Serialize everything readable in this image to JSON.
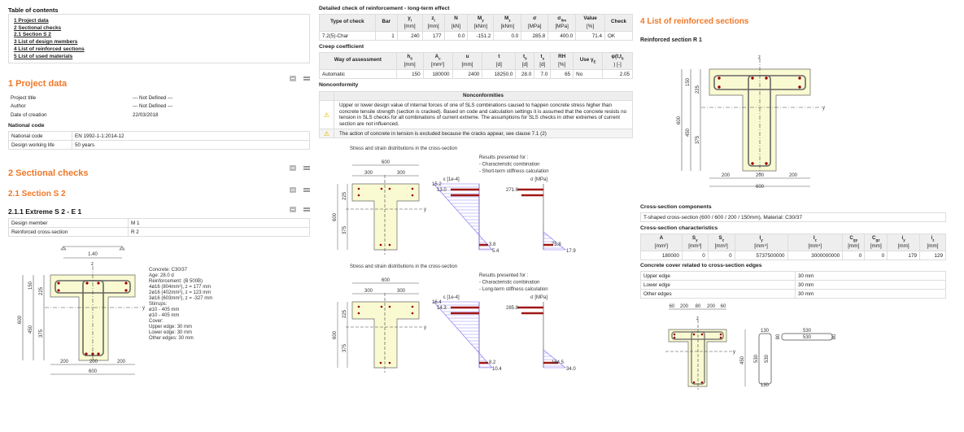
{
  "toc": {
    "title": "Table of contents",
    "items": [
      "1 Project data",
      "2 Sectional checks",
      "2.1 Section S 2",
      "3 List of design members",
      "4 List of reinforced sections",
      "5 List of used materials"
    ]
  },
  "project": {
    "title": "1 Project data",
    "rows": [
      [
        "Project title",
        "--- Not Defined ---"
      ],
      [
        "Author",
        "--- Not Defined ---"
      ],
      [
        "Date of creation",
        "22/03/2018"
      ]
    ],
    "national_heading": "National code",
    "national": [
      [
        "National code",
        "EN 1992-1-1:2014-12"
      ],
      [
        "Design working life",
        "50 years"
      ]
    ]
  },
  "sectional": {
    "title": "2 Sectional checks",
    "section_title": "2.1 Section S 2",
    "extreme_title": "2.1.1 Extreme S 2 - E 1",
    "rows": [
      [
        "Design member",
        "M 1"
      ],
      [
        "Reinforced cross-section",
        "R 2"
      ]
    ]
  },
  "drawing1": {
    "span": "1.40",
    "dims": {
      "h": "600",
      "h1": "150",
      "h2": "450",
      "a1": "225",
      "a2": "375",
      "b1": "200",
      "b2": "200",
      "b3": "200",
      "b": "600"
    },
    "axis_y": "y",
    "axis_z": "z",
    "notes": [
      "Concrete: C30/37",
      "Age: 28.0 d",
      "Reinforcement: (B 500B)",
      "4ø16 (804mm²), z = 177 mm",
      "2ø16 (402mm²), z = 123 mm",
      "3ø16 (603mm²), z = -327 mm",
      "Stirrups:",
      "ø10 - 405 mm",
      "ø10 - 405 mm",
      "Cover:",
      "Upper edge: 30 mm",
      "Lower edge: 30 mm",
      "Other edges: 30 mm"
    ]
  },
  "check": {
    "title": "Detailed check of reinforcement - long-term effect",
    "headers": [
      [
        "Type of check",
        "",
        ""
      ],
      [
        "Bar",
        "",
        ""
      ],
      [
        "y",
        "i",
        "[mm]"
      ],
      [
        "z",
        "i",
        "[mm]"
      ],
      [
        "N",
        "",
        "[kN]"
      ],
      [
        "M",
        "y",
        "[kNm]"
      ],
      [
        "M",
        "z",
        "[kNm]"
      ],
      [
        "σ",
        "",
        "[MPa]"
      ],
      [
        "σ",
        "lim",
        "[MPa]"
      ],
      [
        "Value",
        "",
        "[%]"
      ],
      [
        "Check",
        "",
        ""
      ]
    ],
    "rows": [
      [
        "7.2(5)-Char",
        "1",
        "240",
        "177",
        "0.0",
        "-151.2",
        "0.0",
        "285.8",
        "400.0",
        "71.4",
        "OK"
      ]
    ]
  },
  "creep": {
    "title": "Creep coefficient",
    "headers": [
      [
        "Way of assessment",
        "",
        ""
      ],
      [
        "h",
        "0",
        "[mm]"
      ],
      [
        "A",
        "c",
        "[mm²]"
      ],
      [
        "u",
        "",
        "[mm]"
      ],
      [
        "t",
        "",
        "[d]"
      ],
      [
        "t",
        "0",
        "[d]"
      ],
      [
        "t",
        "s",
        "[d]"
      ],
      [
        "RH",
        "",
        "[%]"
      ],
      [
        "Use γ",
        "E",
        ""
      ],
      [
        "φ(t,t",
        "0",
        ") [-]"
      ]
    ],
    "rows": [
      [
        "Automatic",
        "150",
        "180000",
        "2400",
        "18250.0",
        "28.0",
        "7.0",
        "65",
        "No",
        "2.05"
      ]
    ]
  },
  "nonconformity": {
    "title": "Nonconformity",
    "header": "Nonconformities",
    "items": [
      "Upper or lower design value of internal forces of one of SLS combinations caused to happen concrete stress higher than concrete tensile strength (section is cracked). Based on code and calculation settings it is assumed that the concrete resists no tension in SLS checks for all combinations of current extreme. The assumptions for SLS checks in other extremes of current section are not influenced.",
      "The action of concrete in tension is excluded because the cracks appear, see clause 7.1 (2)"
    ],
    "icon": "warning-icon"
  },
  "distributions": [
    {
      "title": "Stress and strain distributions in the cross-section",
      "results": [
        "Results presented for :",
        "- Characteristic combination",
        "- Short-term stiffness calculation"
      ],
      "strain_label": "ε [1e-4]",
      "stress_label": "σ [MPa]",
      "strain_top": "15.2",
      "strain_bar_top": "13.0",
      "strain_bar_bot": "3.8",
      "strain_bot": "5.4",
      "stress_bar_top": "271.6",
      "stress_bar_bot": "75.8",
      "stress_bot": "17.9",
      "dims": {
        "b": "600",
        "b1": "300",
        "b2": "300",
        "h": "600",
        "a1": "225",
        "a2": "375"
      }
    },
    {
      "title": "Stress and strain distributions in the cross-section",
      "results": [
        "Results presented for :",
        "- Characteristic combination",
        "- Long-term stiffness calculation"
      ],
      "strain_label": "ε [1e-4]",
      "stress_label": "σ [MPa]",
      "strain_top": "16.4",
      "strain_bar_top": "14.3",
      "strain_bar_bot": "8.2",
      "strain_bot": "10.4",
      "stress_bar_top": "285.8",
      "stress_bar_bot": "164.5",
      "stress_bot": "34.0",
      "dims": {
        "b": "600",
        "b1": "300",
        "b2": "300",
        "h": "600",
        "a1": "225",
        "a2": "375"
      }
    }
  ],
  "reinforced": {
    "title": "4 List of reinforced sections",
    "subtitle": "Reinforced section R 1",
    "dims": {
      "h": "600",
      "h1": "150",
      "h2": "450",
      "a1": "225",
      "a2": "375",
      "b1": "200",
      "b2": "200",
      "b3": "200",
      "b": "600"
    },
    "components_title": "Cross-section components",
    "components": "T-shaped cross-section (600 / 600 / 200 / 150mm), Material: C30/37",
    "char_title": "Cross-section characteristics",
    "char_headers": [
      [
        "A",
        "",
        "[mm²]"
      ],
      [
        "S",
        "y",
        "[mm³]"
      ],
      [
        "S",
        "z",
        "[mm³]"
      ],
      [
        "I",
        "y",
        "[mm⁴]"
      ],
      [
        "I",
        "z",
        "[mm⁴]"
      ],
      [
        "C",
        "gy",
        "[mm]"
      ],
      [
        "C",
        "gz",
        "[mm]"
      ],
      [
        "i",
        "y",
        "[mm]"
      ],
      [
        "i",
        "z",
        "[mm]"
      ]
    ],
    "char_rows": [
      [
        "180000",
        "0",
        "0",
        "5737500000",
        "3000000000",
        "0",
        "0",
        "179",
        "129"
      ]
    ],
    "cover_title": "Concrete cover related to cross-section edges",
    "cover": [
      [
        "Upper edge",
        "30 mm"
      ],
      [
        "Lower edge",
        "30 mm"
      ],
      [
        "Other edges",
        "30 mm"
      ]
    ],
    "schedule": {
      "top_dims": [
        "60",
        "200",
        "80",
        "200",
        "60"
      ],
      "v_dims": [
        "450"
      ],
      "stirrup1": [
        "130",
        "530",
        "530",
        "130"
      ],
      "stirrup2": [
        "530",
        "530",
        "80",
        "80"
      ]
    }
  },
  "colors": {
    "accent": "#f07828",
    "concrete": "#fafad2",
    "rebar": "#990000",
    "strain": "#7a6cf0",
    "stress_bar": "#a01818"
  }
}
